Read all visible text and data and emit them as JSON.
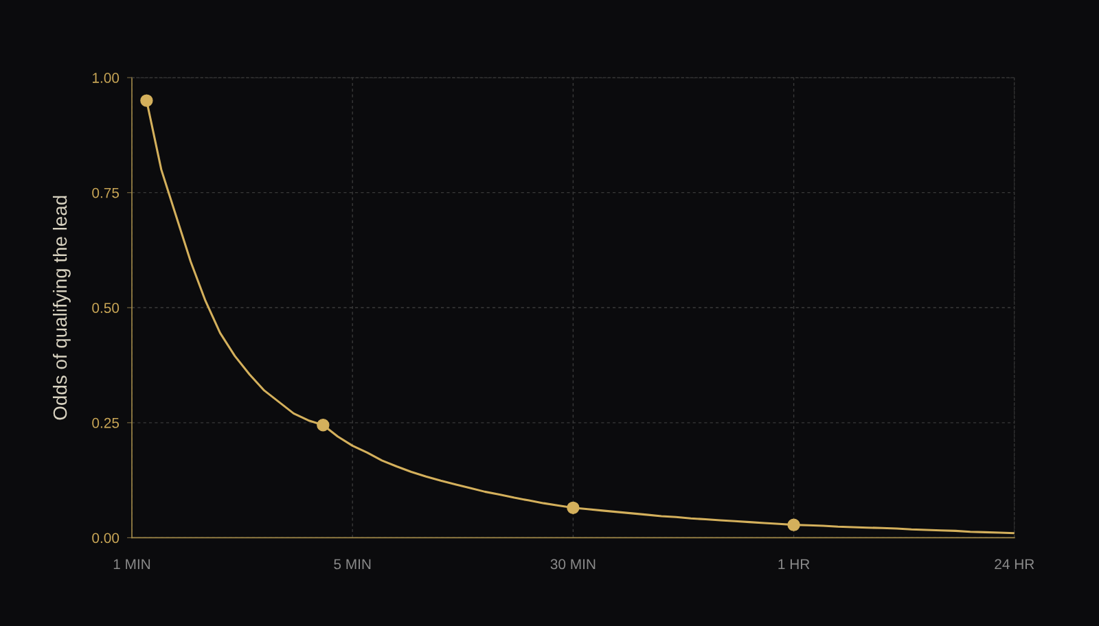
{
  "chart_data": {
    "type": "line",
    "ylabel": "Odds of qualifying the lead",
    "categories": [
      "1 MIN",
      null,
      null,
      null,
      null,
      null,
      null,
      null,
      null,
      null,
      null,
      null,
      null,
      null,
      null,
      "5 MIN",
      null,
      null,
      null,
      null,
      null,
      null,
      null,
      null,
      null,
      null,
      null,
      null,
      null,
      null,
      "30 MIN",
      null,
      null,
      null,
      null,
      null,
      null,
      null,
      null,
      null,
      null,
      null,
      null,
      null,
      null,
      "1 HR",
      null,
      null,
      null,
      null,
      null,
      null,
      null,
      null,
      null,
      null,
      null,
      null,
      null,
      null,
      "24 HR"
    ],
    "ylim": [
      0,
      1
    ],
    "yticks": [
      {
        "value": 0,
        "label": "0.00"
      },
      {
        "value": 0.25,
        "label": "0.25"
      },
      {
        "value": 0.5,
        "label": "0.50"
      },
      {
        "value": 0.75,
        "label": "0.75"
      },
      {
        "value": 1,
        "label": "1.00"
      }
    ],
    "grid": true,
    "series": [
      {
        "color": "#d4b05c",
        "marker": "none",
        "line_style": "solid",
        "values": [
          null,
          0.95,
          0.8,
          0.7,
          0.6,
          0.515,
          0.445,
          0.395,
          0.355,
          0.32,
          0.295,
          0.27,
          0.255,
          0.245,
          0.22,
          0.2,
          0.185,
          0.168,
          0.155,
          0.143,
          0.133,
          0.124,
          0.116,
          0.108,
          0.1,
          0.094,
          0.087,
          0.081,
          0.075,
          0.07,
          0.065,
          0.062,
          0.059,
          0.056,
          0.053,
          0.05,
          0.047,
          0.045,
          0.042,
          0.04,
          0.038,
          0.036,
          0.034,
          0.032,
          0.03,
          0.028,
          0.027,
          0.026,
          0.024,
          0.023,
          0.022,
          0.021,
          0.02,
          0.018,
          0.017,
          0.016,
          0.015,
          0.013,
          0.012,
          0.011,
          0.01
        ]
      },
      {
        "type": "scatter",
        "color": "#d4b05c",
        "marker": "circle",
        "values": [
          null,
          0.95,
          null,
          null,
          null,
          null,
          null,
          null,
          null,
          null,
          null,
          null,
          null,
          0.245,
          null,
          null,
          null,
          null,
          null,
          null,
          null,
          null,
          null,
          null,
          null,
          null,
          null,
          null,
          null,
          null,
          0.065,
          null,
          null,
          null,
          null,
          null,
          null,
          null,
          null,
          null,
          null,
          null,
          null,
          null,
          null,
          0.028,
          null,
          null,
          null,
          null,
          null,
          null,
          null,
          null,
          null,
          null,
          null,
          null,
          null,
          null,
          null
        ]
      }
    ]
  }
}
